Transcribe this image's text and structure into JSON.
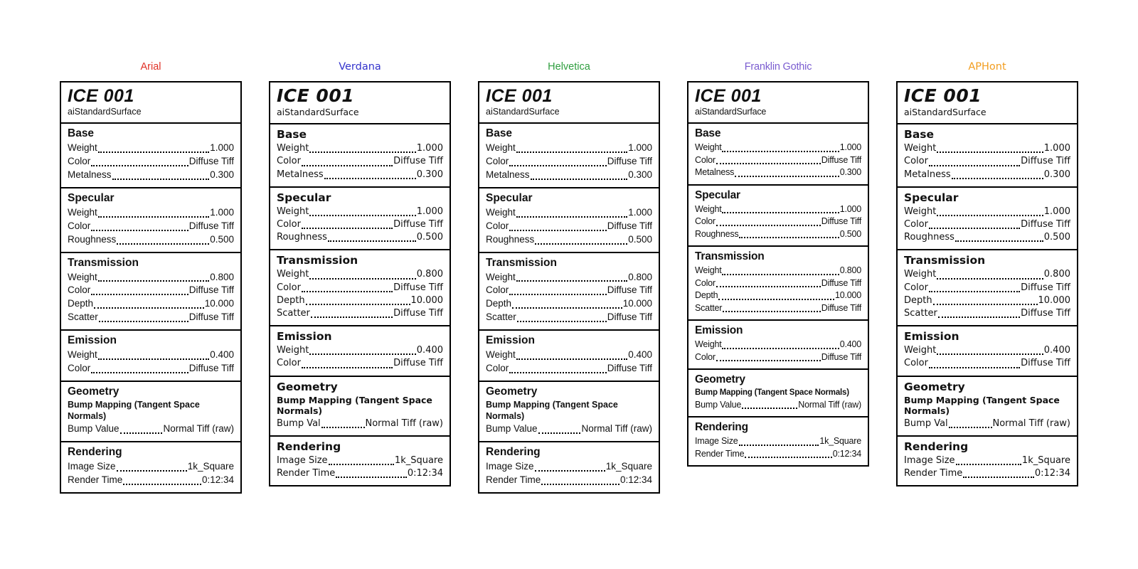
{
  "page": {
    "background": "#ffffff"
  },
  "cards": [
    {
      "font_label": "Arial",
      "accent_color": "#e03127",
      "title": "ICE 001",
      "subtitle": "aiStandardSurface",
      "sections": [
        {
          "heading": "Base",
          "rows": [
            {
              "label": "Weight",
              "value": "1.000"
            },
            {
              "label": "Color",
              "value": "Diffuse Tiff"
            },
            {
              "label": "Metalness",
              "value": "0.300"
            }
          ]
        },
        {
          "heading": "Specular",
          "rows": [
            {
              "label": "Weight",
              "value": "1.000"
            },
            {
              "label": "Color",
              "value": "Diffuse Tiff"
            },
            {
              "label": "Roughness",
              "value": "0.500"
            }
          ]
        },
        {
          "heading": "Transmission",
          "rows": [
            {
              "label": "Weight",
              "value": "0.800"
            },
            {
              "label": "Color",
              "value": "Diffuse Tiff"
            },
            {
              "label": "Depth",
              "value": "10.000"
            },
            {
              "label": "Scatter",
              "value": "Diffuse Tiff"
            }
          ]
        },
        {
          "heading": "Emission",
          "rows": [
            {
              "label": "Weight",
              "value": "0.400"
            },
            {
              "label": "Color",
              "value": "Diffuse Tiff"
            }
          ]
        },
        {
          "heading": "Geometry",
          "note": "Bump Mapping (Tangent Space Normals)",
          "rows": [
            {
              "label": "Bump Value",
              "value": "Normal Tiff (raw)"
            }
          ]
        },
        {
          "heading": "Rendering",
          "rows": [
            {
              "label": "Image Size",
              "value": "1k_Square"
            },
            {
              "label": "Render Time",
              "value": "0:12:34"
            }
          ]
        }
      ]
    },
    {
      "font_label": "Verdana",
      "accent_color": "#3333cc",
      "title": "ICE 001",
      "subtitle": "aiStandardSurface",
      "sections": [
        {
          "heading": "Base",
          "rows": [
            {
              "label": "Weight",
              "value": "1.000"
            },
            {
              "label": "Color",
              "value": "Diffuse Tiff"
            },
            {
              "label": "Metalness",
              "value": "0.300"
            }
          ]
        },
        {
          "heading": "Specular",
          "rows": [
            {
              "label": "Weight",
              "value": "1.000"
            },
            {
              "label": "Color",
              "value": "Diffuse Tiff"
            },
            {
              "label": "Roughness",
              "value": "0.500"
            }
          ]
        },
        {
          "heading": "Transmission",
          "rows": [
            {
              "label": "Weight",
              "value": "0.800"
            },
            {
              "label": "Color",
              "value": "Diffuse Tiff"
            },
            {
              "label": "Depth",
              "value": "10.000"
            },
            {
              "label": "Scatter",
              "value": "Diffuse Tiff"
            }
          ]
        },
        {
          "heading": "Emission",
          "rows": [
            {
              "label": "Weight",
              "value": "0.400"
            },
            {
              "label": "Color",
              "value": "Diffuse Tiff"
            }
          ]
        },
        {
          "heading": "Geometry",
          "note": "Bump Mapping (Tangent Space Normals)",
          "rows": [
            {
              "label": "Bump Val",
              "value": "Normal Tiff (raw)"
            }
          ]
        },
        {
          "heading": "Rendering",
          "rows": [
            {
              "label": "Image Size",
              "value": "1k_Square"
            },
            {
              "label": "Render Time",
              "value": "0:12:34"
            }
          ]
        }
      ]
    },
    {
      "font_label": "Helvetica",
      "accent_color": "#2f9e3f",
      "title": "ICE 001",
      "subtitle": "aiStandardSurface",
      "sections": [
        {
          "heading": "Base",
          "rows": [
            {
              "label": "Weight",
              "value": "1.000"
            },
            {
              "label": "Color",
              "value": "Diffuse Tiff"
            },
            {
              "label": "Metalness",
              "value": "0.300"
            }
          ]
        },
        {
          "heading": "Specular",
          "rows": [
            {
              "label": "Weight",
              "value": "1.000"
            },
            {
              "label": "Color",
              "value": "Diffuse Tiff"
            },
            {
              "label": "Roughness",
              "value": "0.500"
            }
          ]
        },
        {
          "heading": "Transmission",
          "rows": [
            {
              "label": "Weight",
              "value": "0.800"
            },
            {
              "label": "Color",
              "value": "Diffuse Tiff"
            },
            {
              "label": "Depth",
              "value": "10.000"
            },
            {
              "label": "Scatter",
              "value": "Diffuse Tiff"
            }
          ]
        },
        {
          "heading": "Emission",
          "rows": [
            {
              "label": "Weight",
              "value": "0.400"
            },
            {
              "label": "Color",
              "value": "Diffuse Tiff"
            }
          ]
        },
        {
          "heading": "Geometry",
          "note": "Bump Mapping (Tangent Space Normals)",
          "rows": [
            {
              "label": "Bump Value",
              "value": "Normal Tiff (raw)"
            }
          ]
        },
        {
          "heading": "Rendering",
          "rows": [
            {
              "label": "Image Size",
              "value": "1k_Square"
            },
            {
              "label": "Render Time",
              "value": "0:12:34"
            }
          ]
        }
      ]
    },
    {
      "font_label": "Franklin Gothic",
      "accent_color": "#7a5cd0",
      "title": "ICE 001",
      "subtitle": "aiStandardSurface",
      "sections": [
        {
          "heading": "Base",
          "rows": [
            {
              "label": "Weight",
              "value": "1.000"
            },
            {
              "label": "Color",
              "value": "Diffuse Tiff"
            },
            {
              "label": "Metalness",
              "value": "0.300"
            }
          ]
        },
        {
          "heading": "Specular",
          "rows": [
            {
              "label": "Weight",
              "value": "1.000"
            },
            {
              "label": "Color",
              "value": "Diffuse Tiff"
            },
            {
              "label": "Roughness",
              "value": "0.500"
            }
          ]
        },
        {
          "heading": "Transmission",
          "rows": [
            {
              "label": "Weight",
              "value": "0.800"
            },
            {
              "label": "Color",
              "value": "Diffuse Tiff"
            },
            {
              "label": "Depth",
              "value": "10.000"
            },
            {
              "label": "Scatter",
              "value": "Diffuse Tiff"
            }
          ]
        },
        {
          "heading": "Emission",
          "rows": [
            {
              "label": "Weight",
              "value": "0.400"
            },
            {
              "label": "Color",
              "value": "Diffuse Tiff"
            }
          ]
        },
        {
          "heading": "Geometry",
          "note": "Bump Mapping (Tangent Space Normals)",
          "rows": [
            {
              "label": "Bump Value",
              "value": "Normal Tiff (raw)"
            }
          ]
        },
        {
          "heading": "Rendering",
          "rows": [
            {
              "label": "Image Size",
              "value": "1k_Square"
            },
            {
              "label": "Render Time",
              "value": "0:12:34"
            }
          ]
        }
      ]
    },
    {
      "font_label": "APHont",
      "accent_color": "#f29d1f",
      "title": "ICE 001",
      "subtitle": "aiStandardSurface",
      "sections": [
        {
          "heading": "Base",
          "rows": [
            {
              "label": "Weight",
              "value": "1.000"
            },
            {
              "label": "Color",
              "value": "Diffuse Tiff"
            },
            {
              "label": "Metalness",
              "value": "0.300"
            }
          ]
        },
        {
          "heading": "Specular",
          "rows": [
            {
              "label": "Weight",
              "value": "1.000"
            },
            {
              "label": "Color",
              "value": "Diffuse Tiff"
            },
            {
              "label": "Roughness",
              "value": "0.500"
            }
          ]
        },
        {
          "heading": "Transmission",
          "rows": [
            {
              "label": "Weight",
              "value": "0.800"
            },
            {
              "label": "Color",
              "value": "Diffuse Tiff"
            },
            {
              "label": "Depth",
              "value": "10.000"
            },
            {
              "label": "Scatter",
              "value": "Diffuse Tiff"
            }
          ]
        },
        {
          "heading": "Emission",
          "rows": [
            {
              "label": "Weight",
              "value": "0.400"
            },
            {
              "label": "Color",
              "value": "Diffuse Tiff"
            }
          ]
        },
        {
          "heading": "Geometry",
          "note": "Bump Mapping (Tangent Space Normals)",
          "rows": [
            {
              "label": "Bump Val",
              "value": "Normal Tiff (raw)"
            }
          ]
        },
        {
          "heading": "Rendering",
          "rows": [
            {
              "label": "Image Size",
              "value": "1k_Square"
            },
            {
              "label": "Render Time",
              "value": "0:12:34"
            }
          ]
        }
      ]
    }
  ]
}
